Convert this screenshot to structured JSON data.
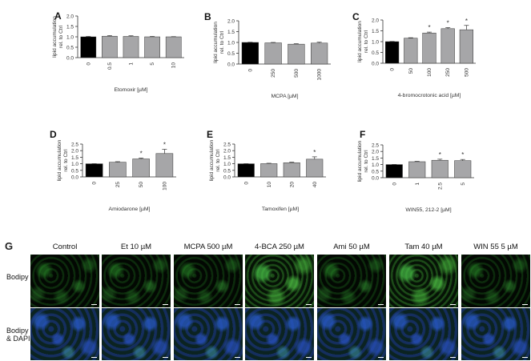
{
  "chart_data": [
    {
      "panel": "A",
      "type": "bar",
      "categories": [
        "0",
        "0.5",
        "1",
        "5",
        "10"
      ],
      "values": [
        1.0,
        1.03,
        1.02,
        1.0,
        1.0
      ],
      "errors": [
        0.02,
        0.03,
        0.03,
        0.02,
        0.01
      ],
      "significant": [
        false,
        false,
        false,
        false,
        false
      ],
      "xlabel": "Etomoxir [µM]",
      "ylabel": "lipid accumulation rel. to Ctrl",
      "ylim": [
        0,
        2.0
      ],
      "yticks": [
        "0.0",
        "0.5",
        "1.0",
        "1.5",
        "2.0"
      ]
    },
    {
      "panel": "B",
      "type": "bar",
      "categories": [
        "0",
        "250",
        "500",
        "1000"
      ],
      "values": [
        1.0,
        0.98,
        0.92,
        0.97
      ],
      "errors": [
        0.01,
        0.02,
        0.02,
        0.04
      ],
      "significant": [
        false,
        false,
        false,
        false
      ],
      "xlabel": "MCPA [µM]",
      "ylabel": "lipid accumulation rel. to Ctrl",
      "ylim": [
        0,
        2.0
      ],
      "yticks": [
        "0.0",
        "0.5",
        "1.0",
        "1.5",
        "2.0"
      ]
    },
    {
      "panel": "C",
      "type": "bar",
      "categories": [
        "0",
        "50",
        "100",
        "250",
        "500"
      ],
      "values": [
        1.0,
        1.16,
        1.4,
        1.6,
        1.55
      ],
      "errors": [
        0.01,
        0.02,
        0.04,
        0.05,
        0.2
      ],
      "significant": [
        false,
        false,
        true,
        true,
        true
      ],
      "xlabel": "4-bromocrotonic acid [µM]",
      "ylabel": "lipid accumulation rel. to Ctrl",
      "ylim": [
        0,
        2.0
      ],
      "yticks": [
        "0.0",
        "0.5",
        "1.0",
        "1.5",
        "2.0"
      ]
    },
    {
      "panel": "D",
      "type": "bar",
      "categories": [
        "0",
        "25",
        "50",
        "100"
      ],
      "values": [
        1.0,
        1.12,
        1.37,
        1.78
      ],
      "errors": [
        0.01,
        0.04,
        0.06,
        0.32
      ],
      "significant": [
        false,
        false,
        true,
        true
      ],
      "xlabel": "Amiodarone [µM]",
      "ylabel": "lipid accumulation rel. to Ctrl",
      "ylim": [
        0,
        2.5
      ],
      "yticks": [
        "0.0",
        "0.5",
        "1.0",
        "1.5",
        "2.0",
        "2.5"
      ]
    },
    {
      "panel": "E",
      "type": "bar",
      "categories": [
        "0",
        "10",
        "20",
        "40"
      ],
      "values": [
        1.0,
        1.01,
        1.08,
        1.35
      ],
      "errors": [
        0.01,
        0.03,
        0.04,
        0.18
      ],
      "significant": [
        false,
        false,
        false,
        true
      ],
      "xlabel": "Tamoxifen [µM]",
      "ylabel": "lipid accumulation rel. to Ctrl",
      "ylim": [
        0,
        2.5
      ],
      "yticks": [
        "0.0",
        "0.5",
        "1.0",
        "1.5",
        "2.0",
        "2.5"
      ]
    },
    {
      "panel": "F",
      "type": "bar",
      "categories": [
        "0",
        "1",
        "2.5",
        "5"
      ],
      "values": [
        1.0,
        1.22,
        1.33,
        1.3
      ],
      "errors": [
        0.01,
        0.03,
        0.08,
        0.09
      ],
      "significant": [
        false,
        false,
        true,
        true
      ],
      "xlabel": "WIN55, 212-2 [µM]",
      "ylabel": "lipid accumulation rel. to Ctrl",
      "ylim": [
        0,
        2.5
      ],
      "yticks": [
        "0.0",
        "0.5",
        "1.0",
        "1.5",
        "2.0",
        "2.5"
      ]
    }
  ],
  "colors": {
    "control_bar": "#000000",
    "treated_bar": "#a6a6a8",
    "axis": "#333333"
  },
  "significance_marker": "*",
  "micrographs": {
    "panel": "G",
    "columns": [
      "Control",
      "Et 10 µM",
      "MCPA 500 µM",
      "4-BCA 250 µM",
      "Ami 50 µM",
      "Tam 40 µM",
      "WIN 55 5 µM"
    ],
    "row1_label": "Bodipy",
    "row2_label_line1": "Bodipy",
    "row2_label_line2": "& DAPI"
  }
}
